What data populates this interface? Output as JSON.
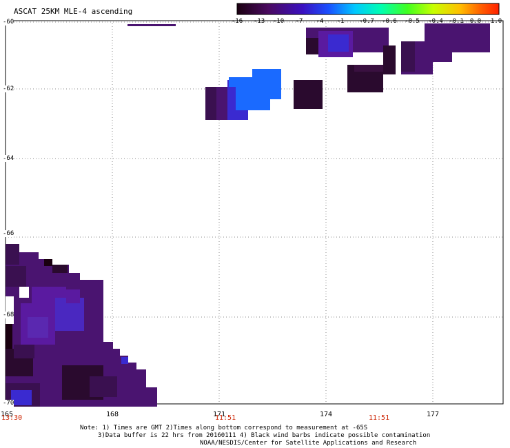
{
  "title": "ASCAT 25KM MLE-4 ascending",
  "colorbar": {
    "ticks": [
      "-16",
      "-13",
      "-10",
      "-7",
      "-4",
      "-1",
      "-0.7",
      "-0.6",
      "-0.5",
      "-0.4",
      "-0.1",
      "0.0",
      "1.0"
    ]
  },
  "axes": {
    "lat_labels": [
      "-60",
      "-62",
      "-64",
      "-66",
      "-68",
      "-70"
    ],
    "lon_labels": [
      "165",
      "168",
      "171",
      "174",
      "177"
    ],
    "times": [
      "13:30",
      "11:51",
      "11:51"
    ]
  },
  "notes": {
    "line1": "Note: 1) Times are GMT 2)Times along bottom correspond to measurement at -65S",
    "line2": "3)Data buffer is 22 hrs from 20160111 4) Black wind barbs indicate possible contamination",
    "line3": "NOAA/NESDIS/Center for Satellite Applications and Research"
  },
  "colors": {
    "dark_purple": "#2a0a2e",
    "purple": "#4a1470",
    "violet": "#5a1aa0",
    "blue_violet": "#3a2ad0",
    "blue": "#1a6aff"
  }
}
